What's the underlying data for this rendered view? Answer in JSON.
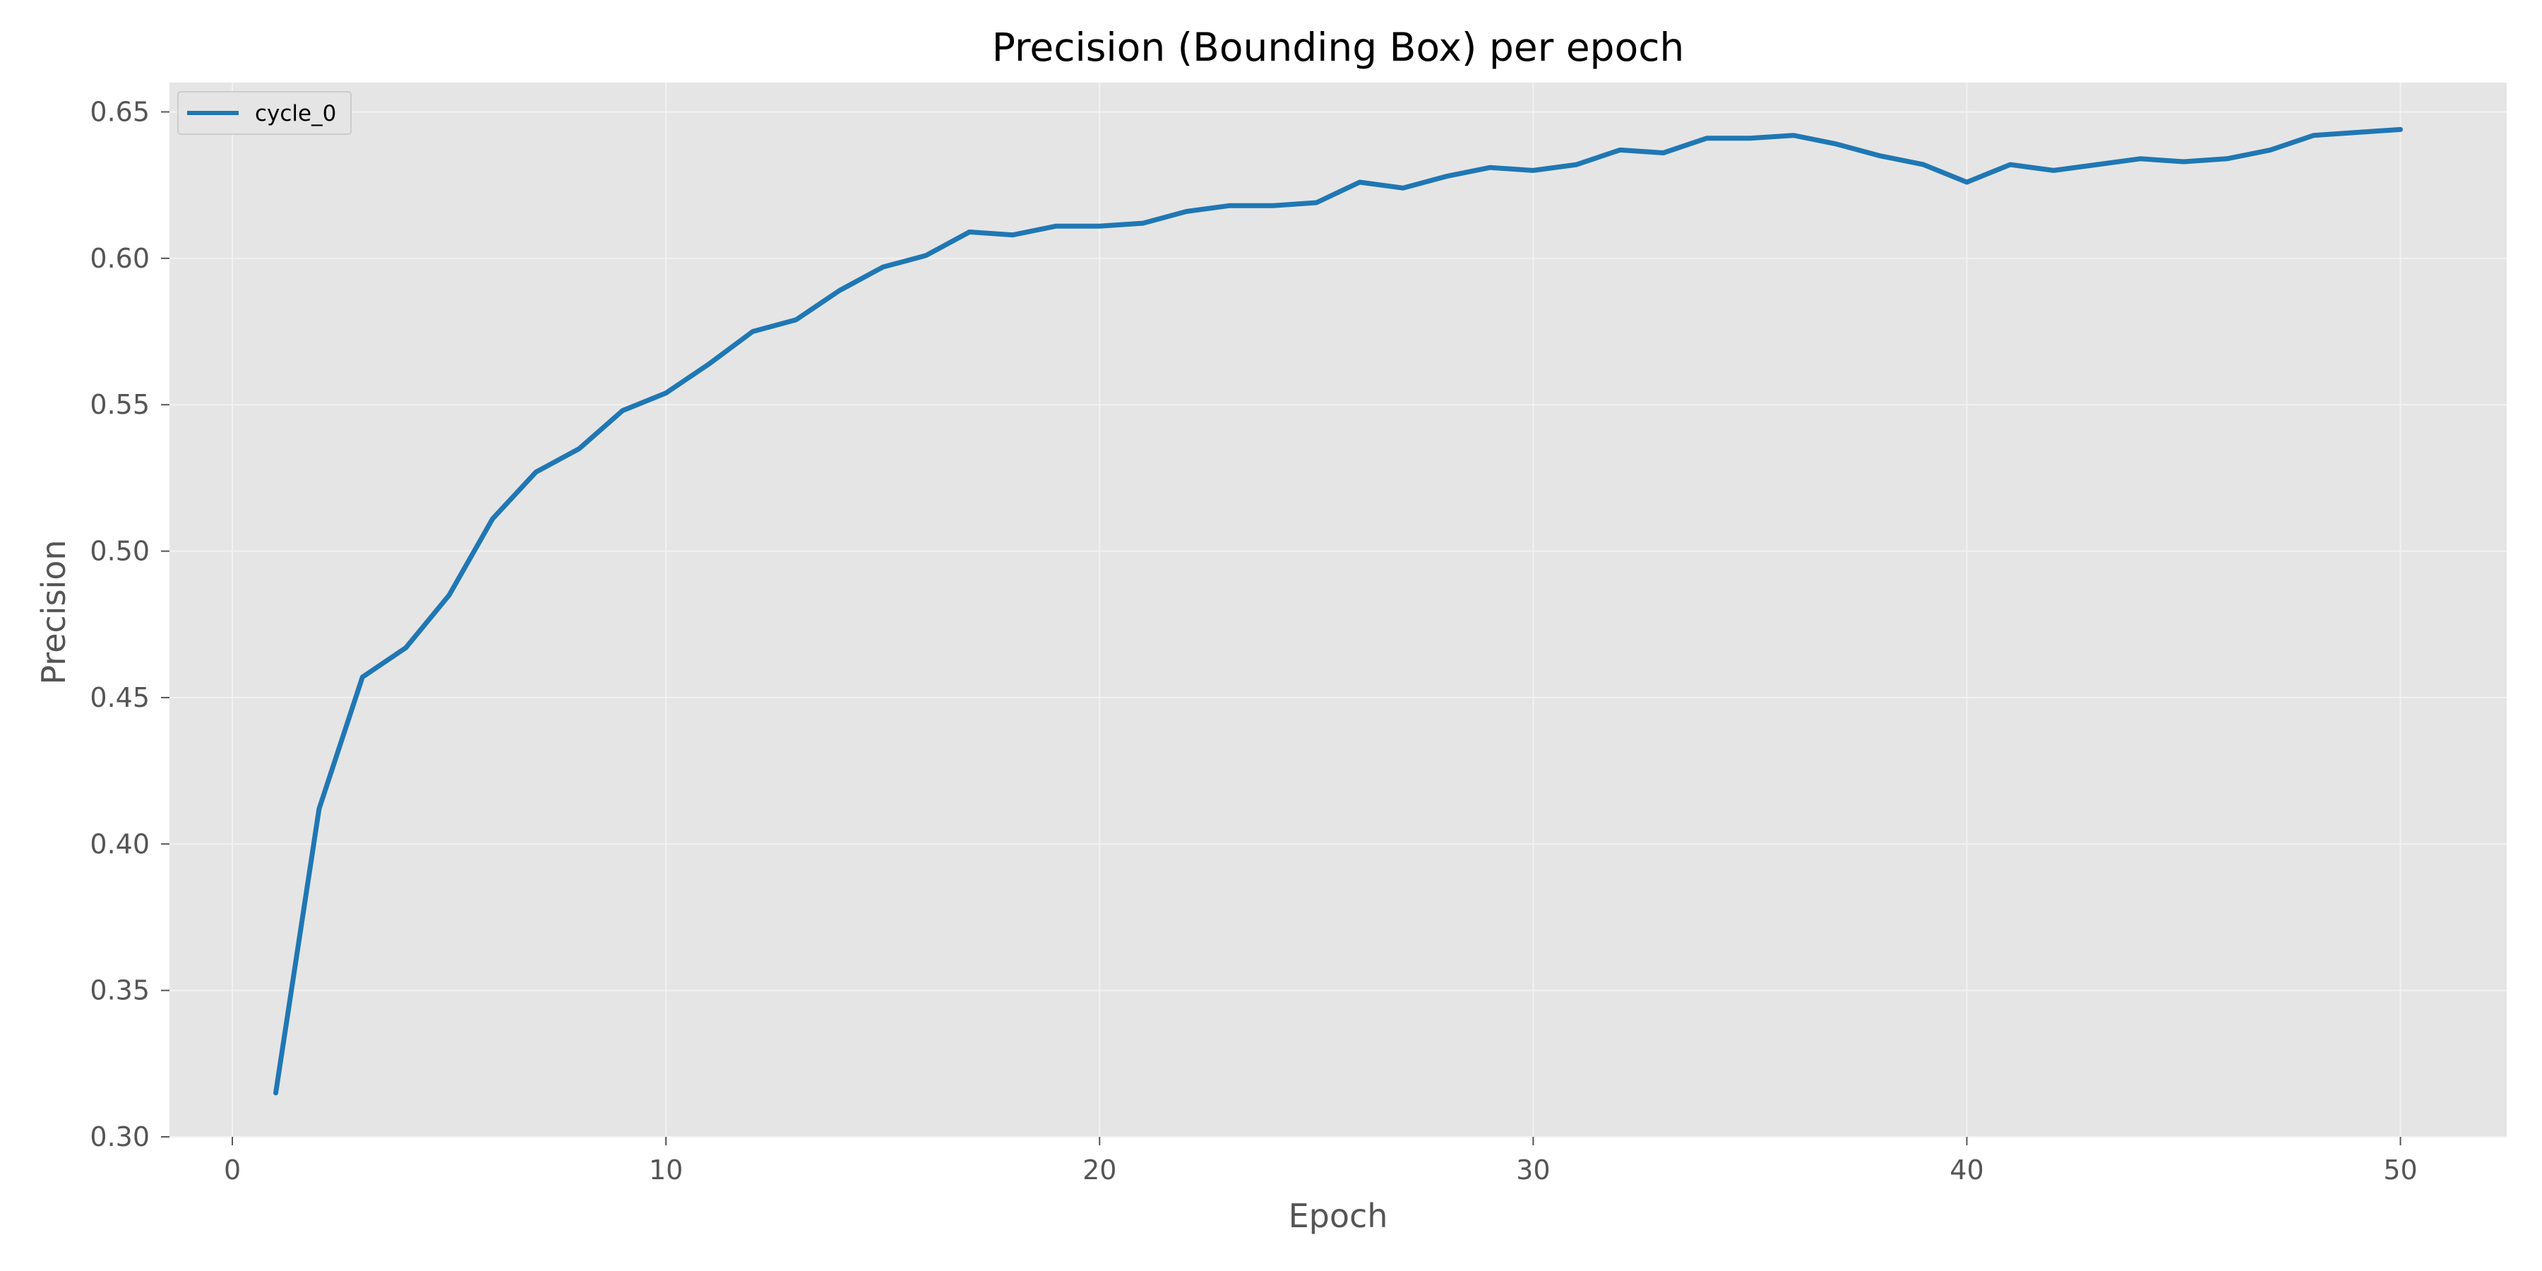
{
  "chart_data": {
    "type": "line",
    "title": "Precision (Bounding Box) per epoch",
    "xlabel": "Epoch",
    "ylabel": "Precision",
    "xlim": [
      -1.45,
      52.45
    ],
    "ylim": [
      0.3,
      0.66
    ],
    "x_ticks": [
      0,
      10,
      20,
      30,
      40,
      50
    ],
    "y_ticks": [
      0.3,
      0.35,
      0.4,
      0.45,
      0.5,
      0.55,
      0.6,
      0.65
    ],
    "x_tick_labels": [
      "0",
      "10",
      "20",
      "30",
      "40",
      "50"
    ],
    "y_tick_labels": [
      "0.30",
      "0.35",
      "0.40",
      "0.45",
      "0.50",
      "0.55",
      "0.60",
      "0.65"
    ],
    "grid": true,
    "legend_position": "top-left",
    "series": [
      {
        "name": "cycle_0",
        "color": "#1f77b4",
        "x": [
          1,
          2,
          3,
          4,
          5,
          6,
          7,
          8,
          9,
          10,
          11,
          12,
          13,
          14,
          15,
          16,
          17,
          18,
          19,
          20,
          21,
          22,
          23,
          24,
          25,
          26,
          27,
          28,
          29,
          30,
          31,
          32,
          33,
          34,
          35,
          36,
          37,
          38,
          39,
          40,
          41,
          42,
          43,
          44,
          45,
          46,
          47,
          48,
          49,
          50
        ],
        "y": [
          0.315,
          0.412,
          0.457,
          0.467,
          0.485,
          0.511,
          0.527,
          0.535,
          0.548,
          0.554,
          0.564,
          0.575,
          0.579,
          0.589,
          0.597,
          0.601,
          0.609,
          0.608,
          0.611,
          0.611,
          0.612,
          0.616,
          0.618,
          0.618,
          0.619,
          0.626,
          0.624,
          0.628,
          0.631,
          0.63,
          0.632,
          0.637,
          0.636,
          0.641,
          0.641,
          0.642,
          0.639,
          0.635,
          0.632,
          0.626,
          0.632,
          0.63,
          0.632,
          0.634,
          0.633,
          0.634,
          0.637,
          0.642,
          0.643,
          0.644
        ]
      }
    ]
  }
}
